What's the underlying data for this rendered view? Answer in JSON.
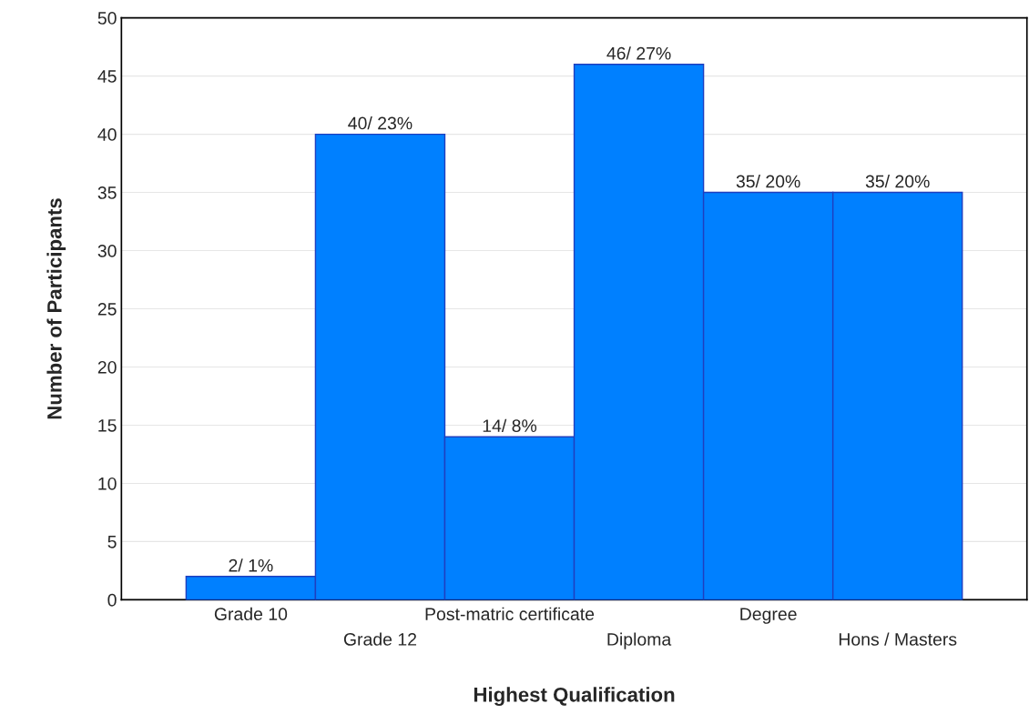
{
  "chart_data": {
    "type": "bar",
    "xlabel": "Highest Qualification",
    "ylabel": "Number of Participants",
    "categories": [
      "Grade 10",
      "Grade 12",
      "Post-matric certificate",
      "Diploma",
      "Degree",
      "Hons / Masters"
    ],
    "values": [
      2,
      40,
      14,
      46,
      35,
      35
    ],
    "value_labels": [
      "2/ 1%",
      "40/ 23%",
      "14/ 8%",
      "46/ 27%",
      "35/ 20%",
      "35/ 20%"
    ],
    "color": "#0080ff",
    "ylim": [
      0,
      50
    ],
    "yticks": [
      0,
      5,
      10,
      15,
      20,
      25,
      30,
      35,
      40,
      45,
      50
    ],
    "grid": "y",
    "legend": false
  }
}
